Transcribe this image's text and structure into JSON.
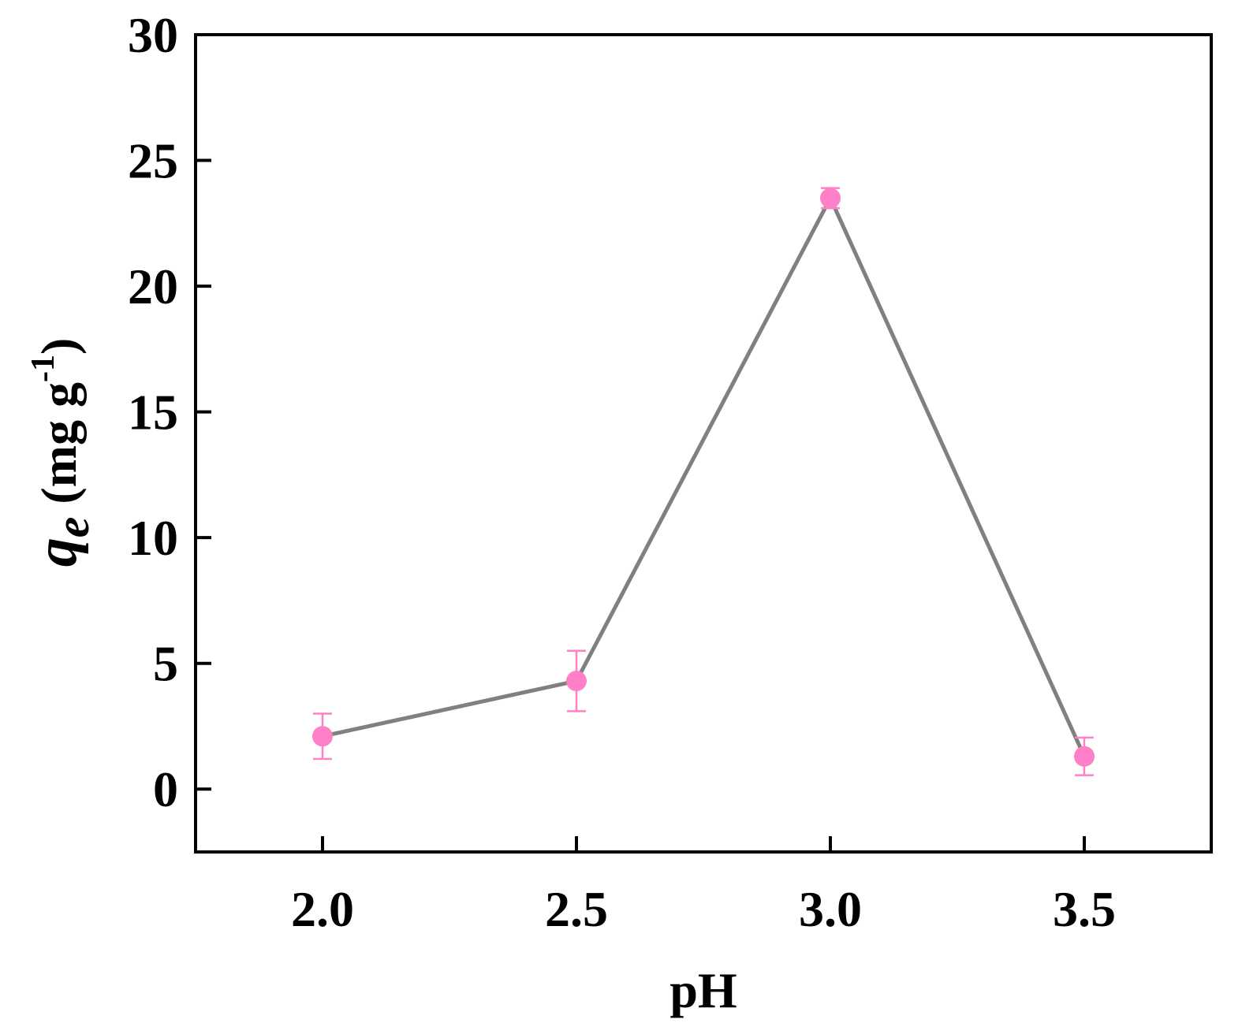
{
  "chart_data": {
    "type": "line",
    "title": "",
    "xlabel": "pH",
    "ylabel": {
      "symbol": "q",
      "subscript": "e",
      "units_open": " (mg g",
      "units_sup": "-1",
      "units_close": ")"
    },
    "xlim": [
      1.75,
      3.75
    ],
    "ylim": [
      -2.5,
      30
    ],
    "xticks": [
      2.0,
      2.5,
      3.0,
      3.5
    ],
    "xtick_labels": [
      "2.0",
      "2.5",
      "3.0",
      "3.5"
    ],
    "yticks": [
      0,
      5,
      10,
      15,
      20,
      25,
      30
    ],
    "ytick_labels": [
      "0",
      "5",
      "10",
      "15",
      "20",
      "25",
      "30"
    ],
    "grid": false,
    "series": [
      {
        "x": [
          2.0,
          2.5,
          3.0,
          3.5
        ],
        "y": [
          2.1,
          4.3,
          23.5,
          1.3
        ],
        "yerr": [
          0.9,
          1.2,
          0.4,
          0.75
        ],
        "line_color": "#808080",
        "marker_color": "#ff80c8"
      }
    ]
  }
}
